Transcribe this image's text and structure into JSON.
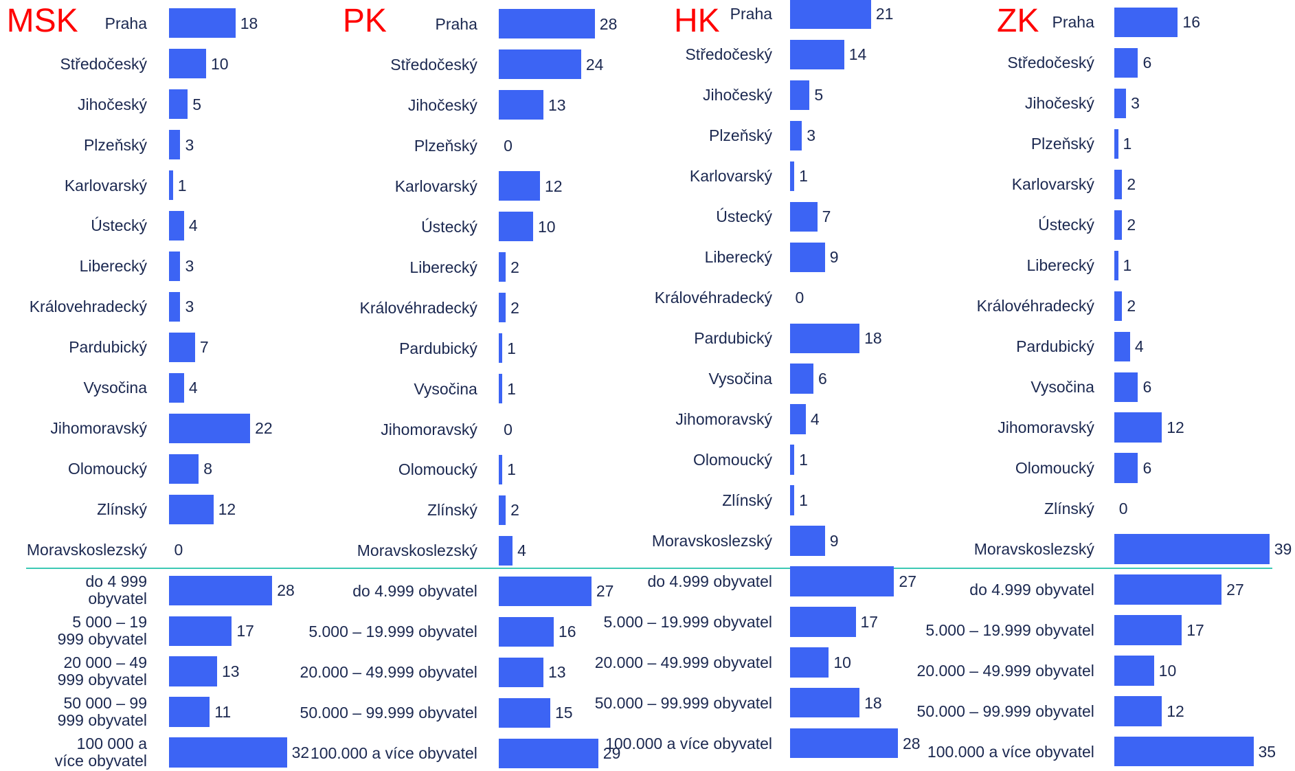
{
  "chart_data": [
    {
      "type": "bar",
      "title": "MSK",
      "color": "#3c64f4",
      "categories": [
        "Praha",
        "Středočeský",
        "Jihočeský",
        "Plzeňský",
        "Karlovarský",
        "Ústecký",
        "Liberecký",
        "Královehradecký",
        "Pardubický",
        "Vysočina",
        "Jihomoravský",
        "Olomoucký",
        "Zlínský",
        "Moravskoslezský",
        "do 4 999 obyvatel",
        "5 000 – 19 999 obyvatel",
        "20 000 – 49 999 obyvatel",
        "50 000 – 99 999 obyvatel",
        "100 000 a více obyvatel"
      ],
      "values": [
        18,
        10,
        5,
        3,
        1,
        4,
        3,
        3,
        7,
        4,
        22,
        8,
        12,
        0,
        28,
        17,
        13,
        11,
        32
      ]
    },
    {
      "type": "bar",
      "title": "PK",
      "color": "#3c64f4",
      "categories": [
        "Praha",
        "Středočeský",
        "Jihočeský",
        "Plzeňský",
        "Karlovarský",
        "Ústecký",
        "Liberecký",
        "Královéhradecký",
        "Pardubický",
        "Vysočina",
        "Jihomoravský",
        "Olomoucký",
        "Zlínský",
        "Moravskoslezský",
        "do 4.999 obyvatel",
        "5.000 – 19.999 obyvatel",
        "20.000 – 49.999 obyvatel",
        "50.000 – 99.999 obyvatel",
        "100.000 a více obyvatel"
      ],
      "values": [
        28,
        24,
        13,
        0,
        12,
        10,
        2,
        2,
        1,
        1,
        0,
        1,
        2,
        4,
        27,
        16,
        13,
        15,
        29
      ]
    },
    {
      "type": "bar",
      "title": "HK",
      "color": "#3c64f4",
      "categories": [
        "Praha",
        "Středočeský",
        "Jihočeský",
        "Plzeňský",
        "Karlovarský",
        "Ústecký",
        "Liberecký",
        "Královéhradecký",
        "Pardubický",
        "Vysočina",
        "Jihomoravský",
        "Olomoucký",
        "Zlínský",
        "Moravskoslezský",
        "do 4.999 obyvatel",
        "5.000 – 19.999 obyvatel",
        "20.000 – 49.999 obyvatel",
        "50.000 – 99.999 obyvatel",
        "100.000 a více obyvatel"
      ],
      "values": [
        21,
        14,
        5,
        3,
        1,
        7,
        9,
        0,
        18,
        6,
        4,
        1,
        1,
        9,
        27,
        17,
        10,
        18,
        28
      ]
    },
    {
      "type": "bar",
      "title": "ZK",
      "color": "#3c64f4",
      "categories": [
        "Praha",
        "Středočeský",
        "Jihočeský",
        "Plzeňský",
        "Karlovarský",
        "Ústecký",
        "Liberecký",
        "Královéhradecký",
        "Pardubický",
        "Vysočina",
        "Jihomoravský",
        "Olomoucký",
        "Zlínský",
        "Moravskoslezský",
        "do 4.999 obyvatel",
        "5.000 – 19.999 obyvatel",
        "20.000 – 49.999 obyvatel",
        "50.000 – 99.999 obyvatel",
        "100.000 a více obyvatel"
      ],
      "values": [
        16,
        6,
        3,
        1,
        2,
        2,
        1,
        2,
        4,
        6,
        12,
        6,
        0,
        39,
        27,
        17,
        10,
        12,
        35
      ]
    }
  ]
}
